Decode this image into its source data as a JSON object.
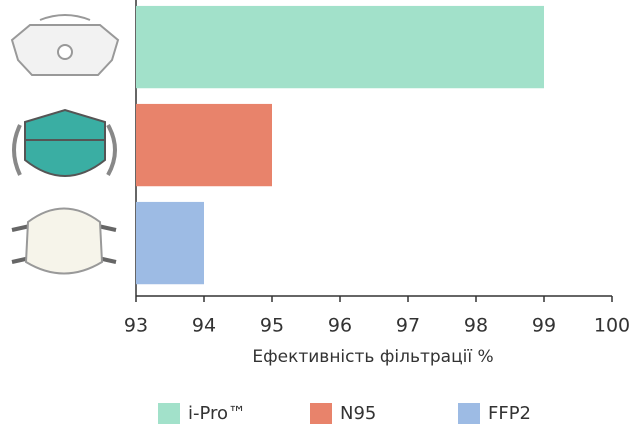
{
  "chart_data": {
    "type": "bar",
    "orientation": "horizontal",
    "categories": [
      "i-Pro™",
      "N95",
      "FFP2"
    ],
    "values": [
      99,
      95,
      94
    ],
    "colors": [
      "#a2e1ca",
      "#e8836b",
      "#9dbbe4"
    ],
    "xlabel": "Ефективність фільтрації %",
    "xlim": [
      93,
      100
    ],
    "xticks": [
      93,
      94,
      95,
      96,
      97,
      98,
      99,
      100
    ],
    "legend": "bottom"
  }
}
